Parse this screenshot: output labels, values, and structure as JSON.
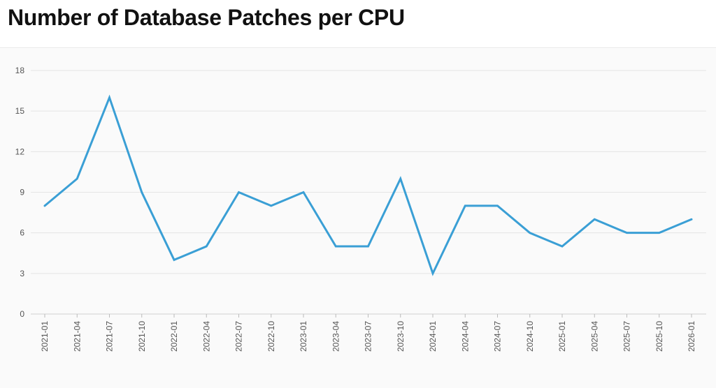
{
  "colors": {
    "line": "#3a9fd5",
    "grid": "#e4e4e4",
    "axis": "#555555",
    "background": "#fafafa"
  },
  "chart_data": {
    "type": "line",
    "title": "Number of Database Patches per CPU",
    "xlabel": "",
    "ylabel": "",
    "ylim": [
      0,
      18
    ],
    "yticks": [
      0,
      3,
      6,
      9,
      12,
      15,
      18
    ],
    "grid": true,
    "legend": "none",
    "x": [
      "2021-01",
      "2021-04",
      "2021-07",
      "2021-10",
      "2022-01",
      "2022-04",
      "2022-07",
      "2022-10",
      "2023-01",
      "2023-04",
      "2023-07",
      "2023-10",
      "2024-01",
      "2024-04",
      "2024-07",
      "2024-10",
      "2025-01",
      "2025-04",
      "2025-07",
      "2025-10",
      "2026-01"
    ],
    "series": [
      {
        "values": [
          8,
          10,
          16,
          9,
          4,
          5,
          9,
          8,
          9,
          5,
          5,
          10,
          3,
          8,
          8,
          6,
          5,
          7,
          6,
          6,
          7
        ]
      }
    ]
  }
}
